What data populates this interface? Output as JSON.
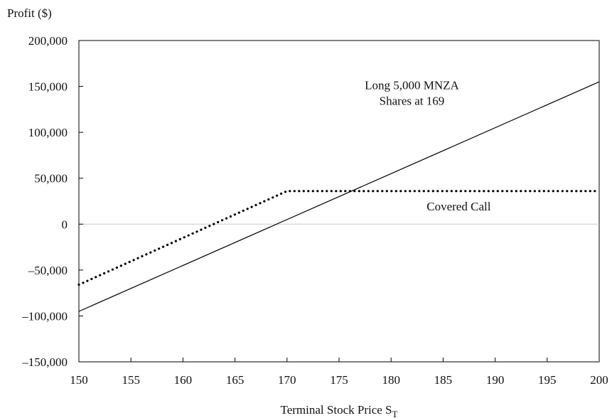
{
  "chart_data": {
    "type": "line",
    "title": "",
    "xlabel": "Terminal Stock Price S",
    "xlabel_sub": "T",
    "ylabel": "Profit ($)",
    "xlim": [
      150,
      200
    ],
    "ylim": [
      -150000,
      200000
    ],
    "x_ticks": [
      150,
      155,
      160,
      165,
      170,
      175,
      180,
      185,
      190,
      195,
      200
    ],
    "x_tick_labels": [
      "150",
      "155",
      "160",
      "165",
      "170",
      "175",
      "180",
      "185",
      "190",
      "195",
      "200"
    ],
    "y_ticks": [
      -150000,
      -100000,
      -50000,
      0,
      50000,
      100000,
      150000,
      200000
    ],
    "y_tick_labels": [
      "–150,000",
      "–100,000",
      "–50,000",
      "0",
      "50,000",
      "100,000",
      "150,000",
      "200,000"
    ],
    "grid": false,
    "zero_line": true,
    "series": [
      {
        "id": "long-shares",
        "name": "Long 5,000 MNZA Shares at 169",
        "style": "solid",
        "color": "#000000",
        "x": [
          150,
          200
        ],
        "y": [
          -95000,
          155000
        ]
      },
      {
        "id": "covered-call",
        "name": "Covered Call",
        "style": "dotted",
        "color": "#000000",
        "x": [
          150,
          170,
          200
        ],
        "y": [
          -66000,
          36000,
          36000
        ]
      }
    ],
    "annotations": [
      {
        "series": "long-shares",
        "lines": [
          "Long 5,000 MNZA",
          "Shares at 169"
        ],
        "x": 182,
        "y": 147000
      },
      {
        "series": "covered-call",
        "lines": [
          "Covered Call"
        ],
        "x": 186.5,
        "y": 15000
      }
    ]
  }
}
